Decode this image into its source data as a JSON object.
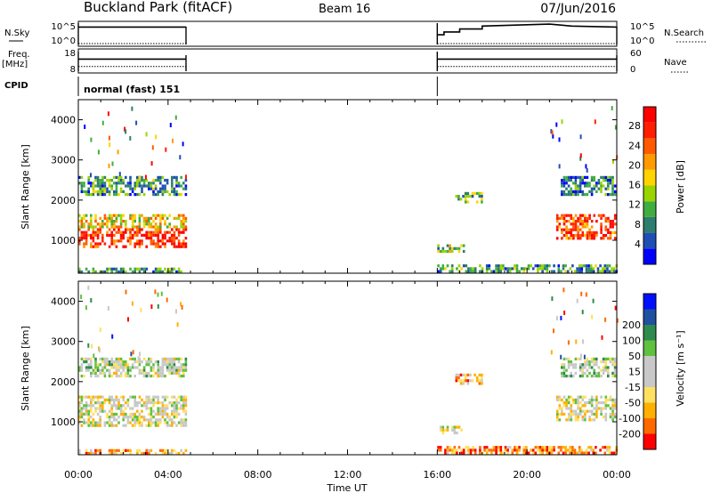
{
  "header": {
    "station": "Buckland Park (fitACF)",
    "beam": "Beam 16",
    "date": "07/Jun/2016"
  },
  "colors": {
    "power": [
      "#0000ff",
      "#1f4fb5",
      "#2e7d6e",
      "#3fae3f",
      "#9ad400",
      "#ffd400",
      "#ff9a00",
      "#ff5a00",
      "#ff1e00",
      "#ff0000"
    ],
    "velocity": [
      "#ff0000",
      "#ff6a00",
      "#ffb000",
      "#ffe060",
      "#c8c8c8",
      "#c8c8c8",
      "#60c040",
      "#2e8a4e",
      "#2050a0",
      "#0010ff"
    ]
  },
  "chart_data": [
    {
      "type": "line",
      "panel": "nsky",
      "left_label": "N.Sky",
      "right_label": "N.Search",
      "left_ticks": [
        "10^5",
        "10^0"
      ],
      "right_ticks": [
        "10^5",
        "10^0"
      ],
      "series": [
        {
          "style": "solid",
          "segments": [
            {
              "x": [
                0.0,
                4.8
              ],
              "y": [
                0.85,
                0.85
              ]
            },
            {
              "x": [
                16.0,
                16.3,
                16.3,
                17.0,
                17.0,
                18.0,
                18.0,
                19.5,
                21.0,
                22.0,
                24.0
              ],
              "y": [
                0.45,
                0.45,
                0.6,
                0.6,
                0.75,
                0.75,
                0.9,
                0.95,
                1.0,
                0.9,
                0.85
              ]
            }
          ]
        },
        {
          "style": "dotted",
          "segments": [
            {
              "x": [
                0.0,
                4.8
              ],
              "y": [
                0.0,
                0.0
              ]
            },
            {
              "x": [
                16.0,
                24.0
              ],
              "y": [
                0.0,
                0.0
              ]
            }
          ]
        }
      ]
    },
    {
      "type": "line",
      "panel": "freq",
      "left_label": "Freq.",
      "left_unit": "[MHz]",
      "right_label": "Nave",
      "left_ticks": [
        "18",
        "8"
      ],
      "right_ticks": [
        "60",
        "0"
      ],
      "series": [
        {
          "style": "solid",
          "segments": [
            {
              "x": [
                0.0,
                4.8
              ],
              "y": [
                10.0,
                10.0
              ]
            },
            {
              "x": [
                16.0,
                24.0
              ],
              "y": [
                10.0,
                10.0
              ]
            }
          ]
        },
        {
          "style": "dotted",
          "segments": [
            {
              "x": [
                0.0,
                4.8
              ],
              "y": [
                9.0,
                9.0
              ]
            },
            {
              "x": [
                16.0,
                24.0
              ],
              "y": [
                9.0,
                9.0
              ]
            }
          ]
        }
      ]
    },
    {
      "type": "text",
      "panel": "cpid",
      "left_label": "CPID",
      "program_label": "normal (fast) 151"
    },
    {
      "type": "heatmap",
      "panel": "power",
      "ylabel": "Slant Range [km]",
      "ylim": [
        180,
        4500
      ],
      "xlim": [
        0,
        24
      ],
      "yticks": [
        1000,
        2000,
        3000,
        4000
      ],
      "colorbar_label": "Power [dB]",
      "colorbar_ticks": [
        "4",
        "8",
        "12",
        "16",
        "20",
        "24",
        "28"
      ],
      "echo_regions": [
        {
          "t": [
            0.0,
            4.8
          ],
          "r": [
            200,
            320
          ],
          "level": 0.3
        },
        {
          "t": [
            0.0,
            4.8
          ],
          "r": [
            850,
            1300
          ],
          "level": 0.85
        },
        {
          "t": [
            0.0,
            4.8
          ],
          "r": [
            1300,
            1650
          ],
          "level": 0.55
        },
        {
          "t": [
            0.0,
            4.8
          ],
          "r": [
            2100,
            2600
          ],
          "level": 0.3
        },
        {
          "t": [
            16.0,
            17.2
          ],
          "r": [
            700,
            900
          ],
          "level": 0.4
        },
        {
          "t": [
            16.8,
            18.0
          ],
          "r": [
            1950,
            2200
          ],
          "level": 0.35
        },
        {
          "t": [
            16.0,
            24.0
          ],
          "r": [
            200,
            400
          ],
          "level": 0.3
        },
        {
          "t": [
            21.3,
            24.0
          ],
          "r": [
            1000,
            1650
          ],
          "level": 0.8
        },
        {
          "t": [
            21.5,
            24.0
          ],
          "r": [
            2100,
            2600
          ],
          "level": 0.25
        }
      ]
    },
    {
      "type": "heatmap",
      "panel": "velocity",
      "ylabel": "Slant Range [km]",
      "ylim": [
        180,
        4500
      ],
      "xlim": [
        0,
        24
      ],
      "yticks": [
        1000,
        2000,
        3000,
        4000
      ],
      "xlabel": "Time UT",
      "xticks": [
        "00:00",
        "04:00",
        "08:00",
        "12:00",
        "16:00",
        "20:00",
        "00:00"
      ],
      "colorbar_label": "Velocity [m s⁻¹]",
      "colorbar_ticks": [
        "-200",
        "-100",
        "-50",
        "-15",
        "15",
        "50",
        "100",
        "200"
      ],
      "echo_regions": [
        {
          "t": [
            0.0,
            4.8
          ],
          "r": [
            200,
            320
          ],
          "level": 0.3
        },
        {
          "t": [
            0.0,
            4.8
          ],
          "r": [
            850,
            1650
          ],
          "level": 0.45
        },
        {
          "t": [
            0.0,
            4.8
          ],
          "r": [
            2100,
            2600
          ],
          "level": 0.5
        },
        {
          "t": [
            16.0,
            17.2
          ],
          "r": [
            700,
            900
          ],
          "level": 0.45
        },
        {
          "t": [
            16.8,
            18.0
          ],
          "r": [
            1950,
            2200
          ],
          "level": 0.3
        },
        {
          "t": [
            16.0,
            24.0
          ],
          "r": [
            200,
            400
          ],
          "level": 0.2
        },
        {
          "t": [
            21.3,
            24.0
          ],
          "r": [
            1000,
            1650
          ],
          "level": 0.45
        },
        {
          "t": [
            21.5,
            24.0
          ],
          "r": [
            2100,
            2600
          ],
          "level": 0.55
        }
      ]
    }
  ]
}
